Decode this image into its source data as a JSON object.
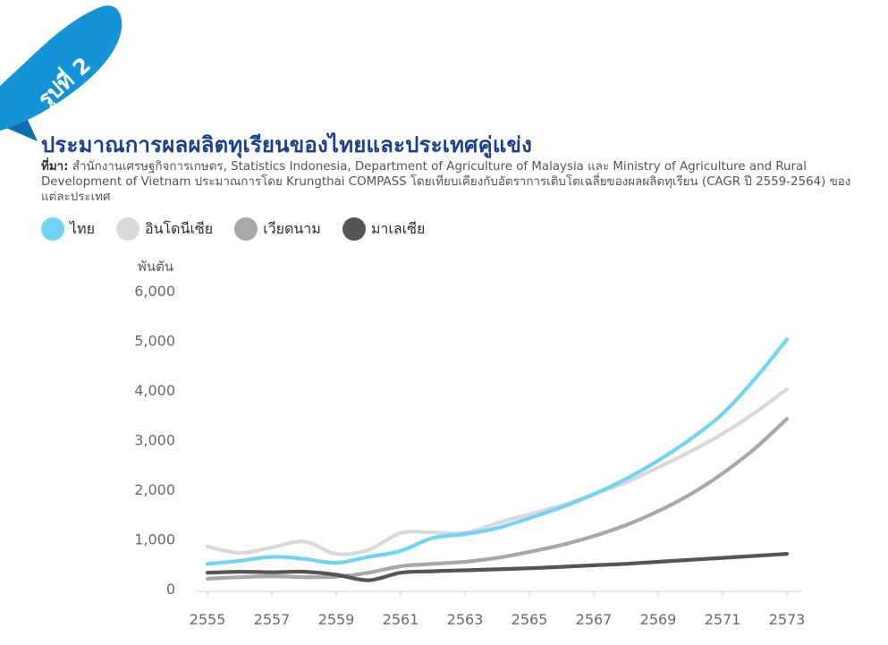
{
  "badge": {
    "text": "รูปที่ 2",
    "color": "#1493d6",
    "color_dark": "#0b6fb0"
  },
  "header": {
    "title": "ประมาณการผลผลิตทุเรียนของไทยและประเทศคู่แข่ง",
    "source_label": "ที่มา:",
    "source_text": " สำนักงานเศรษฐกิจการเกษตร, Statistics Indonesia, Department of Agriculture of Malaysia และ Ministry of Agriculture and Rural Development of Vietnam ประมาณการโดย Krungthai COMPASS โดยเทียบเคียงกับอัตราการเติบโตเฉลี่ยของผลผลิตทุเรียน (CAGR ปี 2559-2564) ของแต่ละประเทศ"
  },
  "chart_data": {
    "type": "line",
    "ylabel": "พันตัน",
    "ylim": [
      0,
      6000
    ],
    "yticks": [
      "0",
      "1,000",
      "2,000",
      "3,000",
      "4,000",
      "5,000",
      "6,000"
    ],
    "xlim": [
      2555,
      2573
    ],
    "xticks": [
      "2555",
      "2557",
      "2559",
      "2561",
      "2563",
      "2565",
      "2567",
      "2569",
      "2571",
      "2573"
    ],
    "grid": false,
    "legend_position": "top-left",
    "series": [
      {
        "name": "ไทย",
        "color": "#72d4f5",
        "x": [
          2555,
          2556,
          2557,
          2558,
          2559,
          2560,
          2561,
          2562,
          2563,
          2564,
          2565,
          2566,
          2567,
          2568,
          2569,
          2570,
          2571,
          2572,
          2573
        ],
        "values": [
          500,
          560,
          640,
          600,
          520,
          640,
          760,
          1020,
          1100,
          1220,
          1420,
          1640,
          1900,
          2210,
          2580,
          3010,
          3520,
          4220,
          5020
        ]
      },
      {
        "name": "อินโดนีเซีย",
        "color": "#d9d9d9",
        "x": [
          2555,
          2556,
          2557,
          2558,
          2559,
          2560,
          2561,
          2562,
          2563,
          2564,
          2565,
          2566,
          2567,
          2568,
          2569,
          2570,
          2571,
          2572,
          2573
        ],
        "values": [
          850,
          720,
          830,
          950,
          700,
          780,
          1120,
          1130,
          1120,
          1320,
          1500,
          1680,
          1900,
          2140,
          2440,
          2760,
          3120,
          3540,
          4020
        ]
      },
      {
        "name": "เวียดนาม",
        "color": "#a8a8a8",
        "x": [
          2555,
          2556,
          2557,
          2558,
          2559,
          2560,
          2561,
          2562,
          2563,
          2564,
          2565,
          2566,
          2567,
          2568,
          2569,
          2570,
          2571,
          2572,
          2573
        ],
        "values": [
          200,
          230,
          250,
          230,
          240,
          320,
          450,
          500,
          540,
          620,
          740,
          880,
          1060,
          1280,
          1560,
          1900,
          2320,
          2820,
          3420
        ]
      },
      {
        "name": "มาเลเซีย",
        "color": "#555555",
        "x": [
          2555,
          2556,
          2557,
          2558,
          2559,
          2560,
          2561,
          2562,
          2563,
          2564,
          2565,
          2566,
          2567,
          2568,
          2569,
          2570,
          2571,
          2572,
          2573
        ],
        "values": [
          320,
          340,
          330,
          340,
          280,
          170,
          320,
          350,
          370,
          390,
          410,
          440,
          470,
          500,
          540,
          580,
          620,
          660,
          700
        ]
      }
    ]
  }
}
